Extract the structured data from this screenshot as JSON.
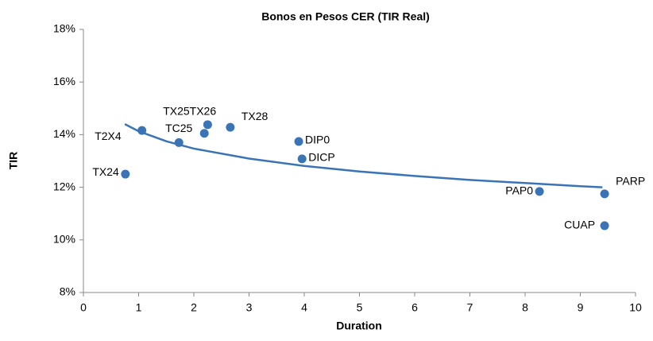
{
  "chart_data": {
    "type": "scatter",
    "title": "Bonos en Pesos CER  (TIR Real)",
    "x_label": "Duration",
    "y_label": "TIR",
    "color": "#3a74b7",
    "labels": [
      "TX24",
      "T2X4",
      "TC25",
      "TX25",
      "TX26",
      "TX28",
      "DIP0",
      "DICP",
      "PAP0",
      "PARP",
      "CUAP"
    ],
    "x": [
      0.76,
      1.06,
      1.73,
      2.19,
      2.25,
      2.66,
      3.9,
      3.96,
      8.26,
      9.44,
      9.44
    ],
    "values": [
      12.5,
      14.16,
      13.7,
      14.05,
      14.38,
      14.28,
      13.74,
      13.08,
      11.84,
      11.75,
      10.54
    ],
    "trendline": {
      "color": "#3a74b7",
      "x": [
        0.75,
        1,
        1.5,
        2,
        3,
        4,
        5,
        6,
        7,
        8,
        9,
        9.4
      ],
      "values": [
        14.4,
        14.13,
        13.75,
        13.47,
        13.09,
        12.81,
        12.6,
        12.43,
        12.28,
        12.16,
        12.04,
        12.0
      ]
    },
    "xlim": [
      0,
      10
    ],
    "ylim": [
      8,
      18
    ],
    "xticks": [
      0,
      1,
      2,
      3,
      4,
      5,
      6,
      7,
      8,
      9,
      10
    ],
    "yticks": [
      {
        "value": 8,
        "label": "8%"
      },
      {
        "value": 10,
        "label": "10%"
      },
      {
        "value": 12,
        "label": "12%"
      },
      {
        "value": 14,
        "label": "14%"
      },
      {
        "value": 16,
        "label": "16%"
      },
      {
        "value": 18,
        "label": "18%"
      }
    ],
    "grid": false
  }
}
